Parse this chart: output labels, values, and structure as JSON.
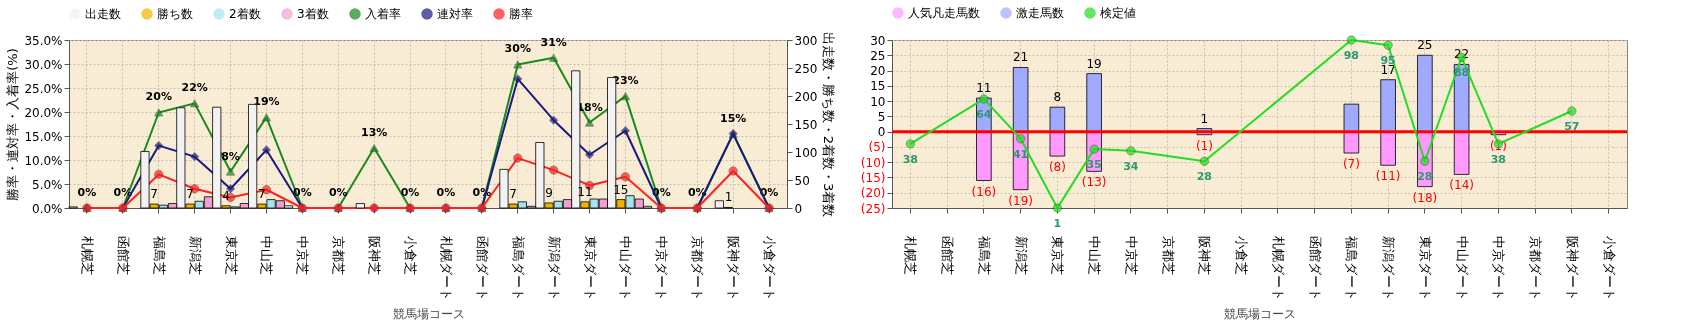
{
  "chart_data": [
    {
      "type": "bar",
      "legend": "top",
      "grid": true,
      "xlabel": "競馬場コース",
      "ylabel": "勝率・連対率・入着率(%)",
      "y2label": "出走数・勝ち数・2着数・3着数",
      "categories": [
        "札幌芝",
        "函館芝",
        "福島芝",
        "新潟芝",
        "東京芝",
        "中山芝",
        "中京芝",
        "京都芝",
        "阪神芝",
        "小倉芝",
        "札幌ダート",
        "函館ダート",
        "福島ダート",
        "新潟ダート",
        "東京ダート",
        "中山ダート",
        "中京ダート",
        "京都ダート",
        "阪神ダート",
        "小倉ダート"
      ],
      "ylim": [
        0,
        35
      ],
      "yticks": [
        {
          "value": 0,
          "label": "0.0%"
        },
        {
          "value": 5,
          "label": "5.0%"
        },
        {
          "value": 10,
          "label": "10.0%"
        },
        {
          "value": 15,
          "label": "15.0%"
        },
        {
          "value": 20,
          "label": "20.0%"
        },
        {
          "value": 25,
          "label": "25.0%"
        },
        {
          "value": 30,
          "label": "30.0%"
        },
        {
          "value": 35,
          "label": "35.0%"
        }
      ],
      "y2lim": [
        0,
        300
      ],
      "y2ticks": [
        0,
        50,
        100,
        150,
        200,
        250,
        300
      ],
      "series": [
        {
          "name": "出走数",
          "axis": "y2",
          "color": "#f2f2f2",
          "values": [
            2,
            null,
            101,
            179,
            180,
            185,
            4,
            null,
            8,
            null,
            null,
            null,
            69,
            117,
            245,
            233,
            3,
            null,
            13,
            null
          ]
        },
        {
          "name": "勝ち数",
          "axis": "y2",
          "color": "#f0b400",
          "values": [
            null,
            null,
            7,
            7,
            4,
            7,
            null,
            null,
            null,
            null,
            null,
            null,
            7,
            9,
            11,
            15,
            null,
            null,
            1,
            null
          ],
          "value_labels": [
            null,
            null,
            "7",
            "7",
            "4",
            "7",
            null,
            null,
            null,
            null,
            null,
            null,
            "7",
            "9",
            "11",
            "15",
            null,
            null,
            "1",
            null
          ]
        },
        {
          "name": "2着数",
          "axis": "y2",
          "color": "#a8e4ee",
          "values": [
            null,
            null,
            5,
            12,
            2,
            15,
            null,
            null,
            null,
            null,
            null,
            null,
            11,
            12,
            16,
            22,
            null,
            null,
            null,
            null
          ]
        },
        {
          "name": "3着数",
          "axis": "y2",
          "color": "#f0a0d0",
          "values": [
            null,
            null,
            8,
            20,
            8,
            13,
            null,
            null,
            null,
            null,
            null,
            null,
            3,
            15,
            16,
            16,
            null,
            null,
            null,
            null
          ]
        },
        {
          "name": "入着率",
          "type": "line",
          "marker": "triangle",
          "color": "#1a8a1a",
          "values": [
            0,
            0,
            19.9,
            21.8,
            7.6,
            18.9,
            0,
            0,
            12.5,
            0,
            0,
            0,
            29.9,
            31.3,
            17.8,
            23.3,
            0,
            0,
            15.4,
            0
          ],
          "value_labels": [
            "0%",
            "0%",
            "20%",
            "22%",
            "8%",
            "19%",
            "0%",
            "0%",
            "13%",
            "0%",
            "0%",
            "0%",
            "30%",
            "31%",
            "18%",
            "23%",
            "0%",
            "0%",
            "15%",
            "0%"
          ]
        },
        {
          "name": "連対率",
          "type": "line",
          "marker": "diamond",
          "color": "#1a1a80",
          "values": [
            0,
            0,
            13.0,
            10.7,
            4.0,
            12.1,
            0,
            0,
            0,
            0,
            0,
            0,
            26.9,
            18.3,
            11.1,
            16.1,
            0,
            0,
            15.5,
            0
          ]
        },
        {
          "name": "勝率",
          "type": "line",
          "marker": "circle",
          "color": "#ff2020",
          "values": [
            0,
            0,
            7.0,
            4.0,
            2.2,
            3.8,
            0,
            0,
            0,
            0,
            0,
            0,
            10.4,
            7.9,
            4.7,
            6.5,
            0,
            0,
            7.7,
            0
          ]
        }
      ]
    },
    {
      "type": "bar",
      "stacked": true,
      "legend": "top",
      "grid": true,
      "xlabel": "競馬場コース",
      "categories": [
        "札幌芝",
        "函館芝",
        "福島芝",
        "新潟芝",
        "東京芝",
        "中山芝",
        "中京芝",
        "京都芝",
        "阪神芝",
        "小倉芝",
        "札幌ダート",
        "函館ダート",
        "福島ダート",
        "新潟ダート",
        "東京ダート",
        "中山ダート",
        "中京ダート",
        "京都ダート",
        "阪神ダート",
        "小倉ダート"
      ],
      "ylim": [
        -25,
        30
      ],
      "yticks": [
        30,
        25,
        20,
        15,
        10,
        5,
        0,
        {
          "value": -5,
          "label": "(5)"
        },
        {
          "value": -10,
          "label": "(10)"
        },
        {
          "value": -15,
          "label": "(15)"
        },
        {
          "value": -20,
          "label": "(20)"
        },
        {
          "value": -25,
          "label": "(25)"
        }
      ],
      "ref_lines": [
        {
          "axis": "y",
          "value": 0,
          "label": null,
          "color": "#ff0000"
        }
      ],
      "series": [
        {
          "name": "人気凡走馬数",
          "color": "#ff99ff",
          "values": [
            null,
            null,
            -16,
            -19,
            -8,
            -13,
            null,
            null,
            -1,
            null,
            null,
            null,
            -7,
            -11,
            -18,
            -14,
            -1,
            null,
            null,
            null
          ],
          "value_labels": [
            null,
            null,
            "(16)",
            "(19)",
            "(8)",
            "(13)",
            null,
            null,
            "(1)",
            null,
            null,
            null,
            "(7)",
            "(11)",
            "(18)",
            "(14)",
            "(1)",
            null,
            null,
            null
          ]
        },
        {
          "name": "激走馬数",
          "color": "#a0aaff",
          "values": [
            null,
            null,
            11,
            21,
            8,
            19,
            null,
            null,
            1,
            null,
            null,
            null,
            9,
            17,
            25,
            22,
            null,
            null,
            null,
            null
          ],
          "value_labels": [
            null,
            null,
            "11",
            "21",
            "8",
            "19",
            null,
            null,
            "1",
            null,
            null,
            null,
            null,
            "17",
            "25",
            "22",
            null,
            null,
            null,
            null
          ]
        },
        {
          "name": "検定値",
          "type": "line",
          "axis": "y2",
          "marker": "circle",
          "color": "#22dd22",
          "values": [
            38,
            null,
            64,
            41,
            1,
            35,
            34,
            null,
            28,
            null,
            null,
            null,
            98,
            95,
            28,
            88,
            38,
            null,
            57,
            null
          ],
          "value_labels": [
            "38",
            null,
            "64",
            "41",
            "1",
            "35",
            "34",
            null,
            "28",
            null,
            null,
            null,
            "98",
            "95",
            "28",
            "88",
            "38",
            null,
            "57",
            null
          ]
        }
      ]
    }
  ]
}
